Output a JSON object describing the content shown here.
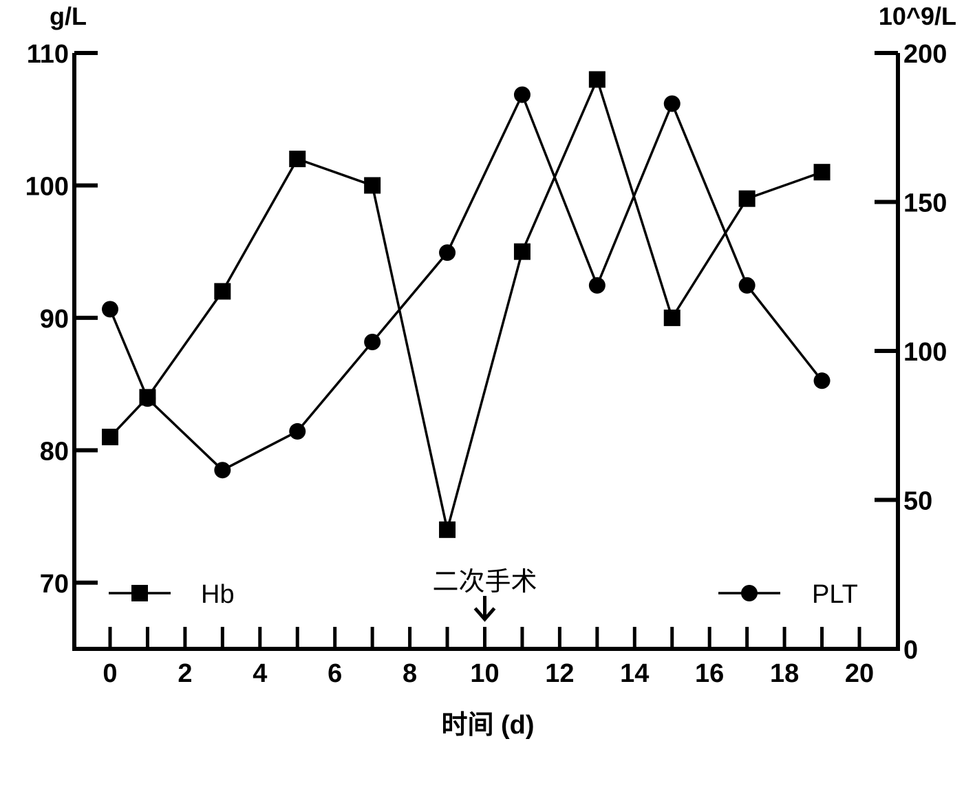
{
  "chart_data": {
    "type": "line",
    "x": [
      0,
      1,
      3,
      5,
      7,
      9,
      11,
      13,
      15,
      17,
      19
    ],
    "series": [
      {
        "name": "Hb",
        "axis": "left",
        "marker": "square",
        "values": [
          81,
          84,
          92,
          102,
          100,
          74,
          95,
          108,
          90,
          99,
          101
        ]
      },
      {
        "name": "PLT",
        "axis": "right",
        "marker": "circle",
        "values": [
          114,
          84,
          60,
          73,
          103,
          133,
          186,
          122,
          183,
          122,
          90
        ]
      }
    ],
    "xlabel": "时间 (d)",
    "xlim": [
      -1,
      21
    ],
    "xticks": [
      "0",
      "2",
      "4",
      "6",
      "8",
      "10",
      "12",
      "14",
      "16",
      "18",
      "20"
    ],
    "ylabel_left": "g/L",
    "ylim_left": [
      65,
      110
    ],
    "yticks_left": [
      "70",
      "80",
      "90",
      "100",
      "110"
    ],
    "ylabel_right": "10^9/L",
    "ylim_right": [
      0,
      200
    ],
    "yticks_right": [
      "0",
      "50",
      "100",
      "150",
      "200"
    ],
    "annotation": {
      "text": "二次手术",
      "x": 10,
      "symbol": "down-arrow"
    },
    "legend": [
      {
        "label": "Hb",
        "marker": "square",
        "placement": "bottom-left"
      },
      {
        "label": "PLT",
        "marker": "circle",
        "placement": "bottom-right"
      }
    ],
    "grid": false,
    "color": "#000000"
  }
}
